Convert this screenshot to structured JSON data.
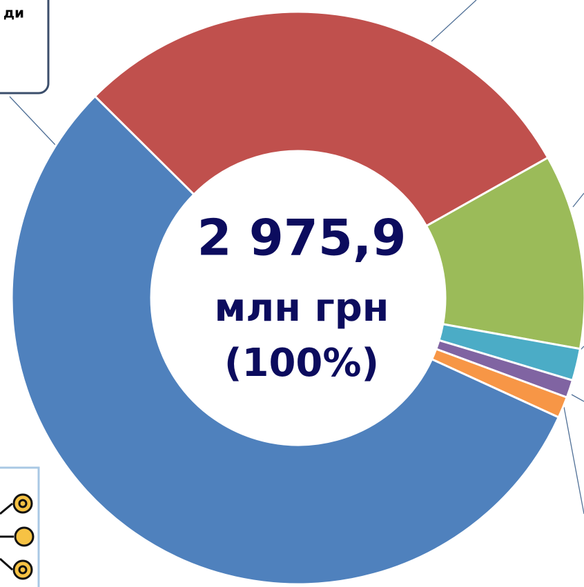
{
  "chart_data": {
    "type": "donut",
    "categories": [
      null,
      null,
      null,
      null,
      null,
      null
    ],
    "values": [
      29.4,
      11.0,
      1.8,
      1.0,
      1.2,
      55.6
    ],
    "colors": [
      "#c0504d",
      "#9bbb59",
      "#4bacc6",
      "#8064a2",
      "#f79646",
      "#4f81bd"
    ],
    "center_text": [
      "2 975,9",
      "млн грн",
      "(100%)"
    ],
    "callout_text": "ди"
  }
}
